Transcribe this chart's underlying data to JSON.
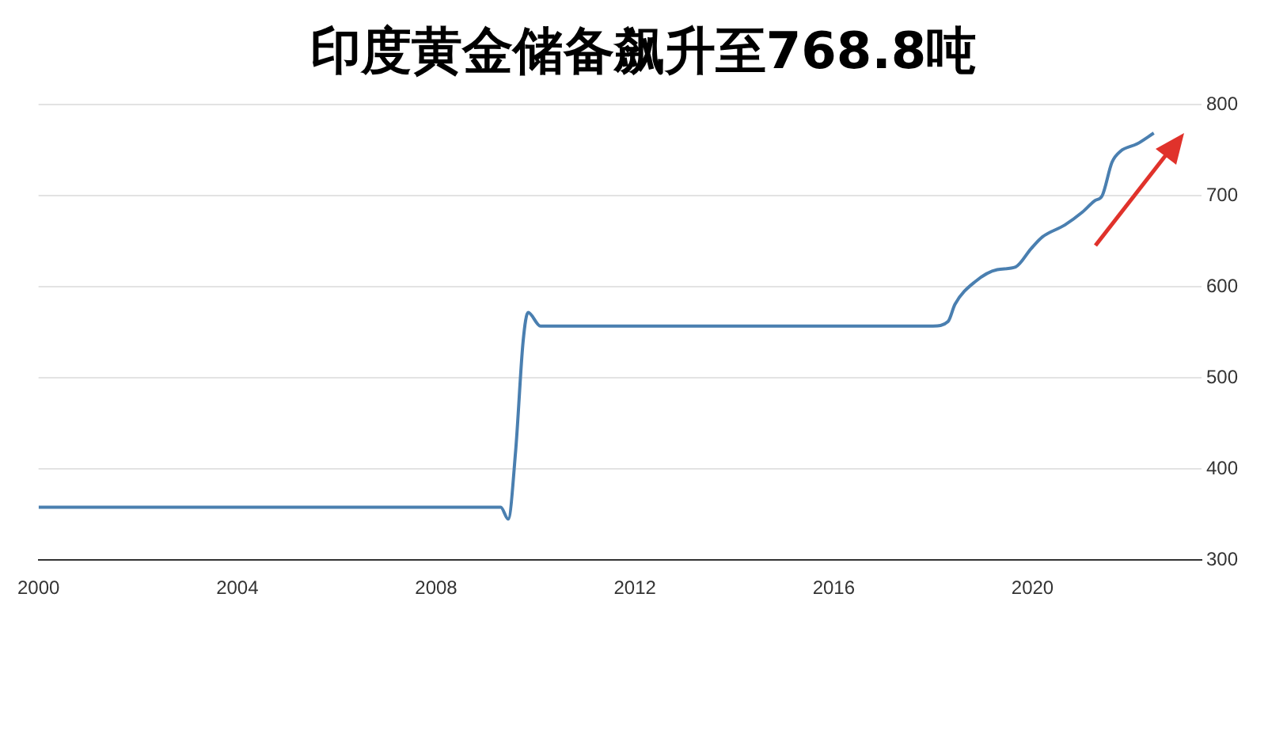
{
  "chart_data": {
    "type": "line",
    "title": "印度黄金储备飙升至768.8吨",
    "series": [
      {
        "color": "#4a7fb0",
        "x": [
          2000.0,
          2001,
          2003,
          2005,
          2007,
          2009.3,
          2009.45,
          2009.6,
          2009.75,
          2009.85,
          2010.1,
          2012,
          2014,
          2016,
          2018.0,
          2018.3,
          2018.44,
          2018.85,
          2019.29,
          2019.66,
          2019.97,
          2020.2,
          2020.65,
          2021.0,
          2021.26,
          2021.4,
          2021.6,
          2021.77,
          2022.1,
          2022.44
        ],
        "values": [
          358,
          358,
          358,
          358,
          358,
          358,
          345,
          420,
          540,
          572,
          557,
          557,
          557,
          557,
          557,
          562,
          581,
          606,
          619,
          622,
          642,
          655,
          668,
          682,
          695,
          700,
          737,
          749,
          757,
          769
        ]
      }
    ],
    "xlim": [
      2000,
      2023.4
    ],
    "xticks": [
      2000,
      2004,
      2008,
      2012,
      2016,
      2020
    ],
    "ylim": [
      300,
      800
    ],
    "yticks": [
      300,
      400,
      500,
      600,
      700,
      800
    ],
    "grid": "y",
    "marker": "none",
    "line_style": "solid",
    "legend": false
  }
}
